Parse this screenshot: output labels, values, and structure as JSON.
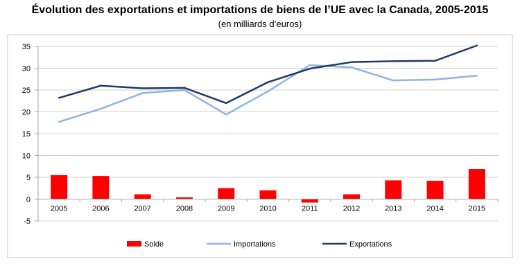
{
  "chart_data": {
    "type": "bar+line",
    "title": "Évolution des exportations et importations de biens de l’UE avec la Canada, 2005-2015",
    "subtitle": "(en milliards d’euros)",
    "categories": [
      "2005",
      "2006",
      "2007",
      "2008",
      "2009",
      "2010",
      "2011",
      "2012",
      "2013",
      "2014",
      "2015"
    ],
    "ylim": [
      -5,
      35
    ],
    "yticks": [
      -5,
      0,
      5,
      10,
      15,
      20,
      25,
      30,
      35
    ],
    "ytick_labels": [
      "-5",
      "0",
      "5",
      "10",
      "15",
      "20",
      "25",
      "30",
      "35"
    ],
    "grid": true,
    "legend_position": "bottom",
    "series": [
      {
        "name": "Solde",
        "kind": "bar",
        "color": "#ff0000",
        "values": [
          5.5,
          5.3,
          1.1,
          0.4,
          2.5,
          2.0,
          -0.8,
          1.1,
          4.3,
          4.2,
          6.9
        ]
      },
      {
        "name": "Importations",
        "kind": "line",
        "color": "#8eb4e3",
        "values": [
          17.7,
          20.7,
          24.3,
          25.0,
          19.4,
          24.7,
          30.7,
          30.2,
          27.2,
          27.4,
          28.3
        ]
      },
      {
        "name": "Exportations",
        "kind": "line",
        "color": "#1f3864",
        "values": [
          23.2,
          26.0,
          25.4,
          25.5,
          22.0,
          26.8,
          29.9,
          31.4,
          31.6,
          31.7,
          35.2
        ]
      }
    ]
  }
}
